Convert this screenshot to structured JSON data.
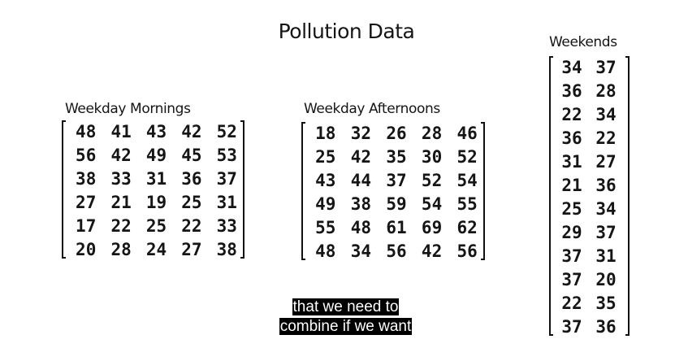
{
  "title": "Pollution Data",
  "matrices": {
    "weekday_mornings": {
      "label": "Weekday Mornings",
      "rows": [
        [
          "48",
          "41",
          "43",
          "42",
          "52"
        ],
        [
          "56",
          "42",
          "49",
          "45",
          "53"
        ],
        [
          "38",
          "33",
          "31",
          "36",
          "37"
        ],
        [
          "27",
          "21",
          "19",
          "25",
          "31"
        ],
        [
          "17",
          "22",
          "25",
          "22",
          "33"
        ],
        [
          "20",
          "28",
          "24",
          "27",
          "38"
        ]
      ]
    },
    "weekday_afternoons": {
      "label": "Weekday Afternoons",
      "rows": [
        [
          "18",
          "32",
          "26",
          "28",
          "46"
        ],
        [
          "25",
          "42",
          "35",
          "30",
          "52"
        ],
        [
          "43",
          "44",
          "37",
          "52",
          "54"
        ],
        [
          "49",
          "38",
          "59",
          "54",
          "55"
        ],
        [
          "55",
          "48",
          "61",
          "69",
          "62"
        ],
        [
          "48",
          "34",
          "56",
          "42",
          "56"
        ]
      ]
    },
    "weekends": {
      "label": "Weekends",
      "rows": [
        [
          "34",
          "37"
        ],
        [
          "36",
          "28"
        ],
        [
          "22",
          "34"
        ],
        [
          "36",
          "22"
        ],
        [
          "31",
          "27"
        ],
        [
          "21",
          "36"
        ],
        [
          "25",
          "34"
        ],
        [
          "29",
          "37"
        ],
        [
          "37",
          "31"
        ],
        [
          "37",
          "20"
        ],
        [
          "22",
          "35"
        ],
        [
          "37",
          "36"
        ]
      ]
    }
  },
  "caption": {
    "line1": "that we need to",
    "line2": "combine if we want"
  }
}
